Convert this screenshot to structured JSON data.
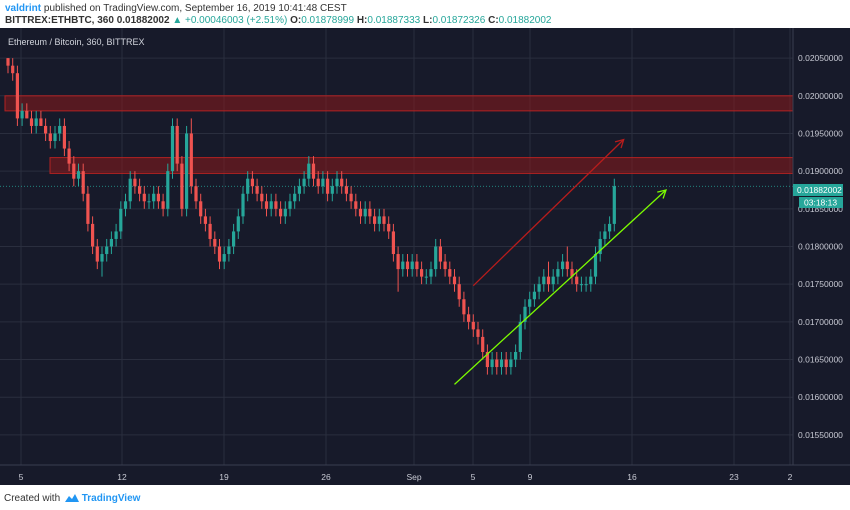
{
  "header": {
    "author": "valdrint",
    "published_text": "published on TradingView.com, September 16, 2019 10:41:48 CEST",
    "symbol_line": "BITTREX:ETHBTC, 360",
    "last_price": "0.01882002",
    "change_arrow": "▲",
    "change": "+0.00046003 (+2.51%)",
    "ohlc": [
      {
        "label": "O:",
        "value": "0.01878999"
      },
      {
        "label": "H:",
        "value": "0.01887333"
      },
      {
        "label": "L:",
        "value": "0.01872326"
      },
      {
        "label": "C:",
        "value": "0.01882002"
      }
    ]
  },
  "chart": {
    "legend": "Ethereum / Bitcoin, 360, BITTREX",
    "price_labels": [
      "0.02050000",
      "0.02000000",
      "0.01950000",
      "0.01900000",
      "0.01850000",
      "0.01800000",
      "0.01750000",
      "0.01700000",
      "0.01650000",
      "0.01600000",
      "0.01550000"
    ],
    "current_price_label": "0.01882002",
    "countdown_label": "03:18:13",
    "date_labels": [
      "5",
      "12",
      "19",
      "26",
      "Sep",
      "5",
      "9",
      "16",
      "23",
      "2"
    ]
  },
  "footer": {
    "created_with": "Created with",
    "brand": "TradingView"
  },
  "colors": {
    "background": "#171a2a",
    "up": "#26a69a",
    "down": "#ef5350",
    "zone": "#8b1a1a",
    "red_arrow": "#b71c1c",
    "green_arrow": "#7cfc00",
    "price_tag": "#26a69a"
  },
  "chart_data": {
    "type": "candlestick",
    "symbol": "ETHBTC",
    "exchange": "BITTREX",
    "interval": "360",
    "ylim": [
      0.0151,
      0.0209
    ],
    "resistance_zones": [
      [
        0.0198,
        0.02
      ],
      [
        0.01897,
        0.01918
      ]
    ],
    "candles": [
      [
        0.0205,
        0.0205,
        0.0203,
        0.0204
      ],
      [
        0.0204,
        0.0205,
        0.0202,
        0.0203
      ],
      [
        0.0203,
        0.0204,
        0.0196,
        0.0197
      ],
      [
        0.0197,
        0.0199,
        0.0196,
        0.0198
      ],
      [
        0.0198,
        0.0199,
        0.0197,
        0.0197
      ],
      [
        0.0197,
        0.0198,
        0.0195,
        0.0196
      ],
      [
        0.0196,
        0.0198,
        0.0195,
        0.0197
      ],
      [
        0.0197,
        0.0198,
        0.0196,
        0.0196
      ],
      [
        0.0196,
        0.0197,
        0.0194,
        0.0195
      ],
      [
        0.0195,
        0.0196,
        0.0193,
        0.0194
      ],
      [
        0.0194,
        0.0196,
        0.0193,
        0.0195
      ],
      [
        0.0195,
        0.0197,
        0.0194,
        0.0196
      ],
      [
        0.0196,
        0.0197,
        0.0192,
        0.0193
      ],
      [
        0.0193,
        0.0194,
        0.019,
        0.0191
      ],
      [
        0.0191,
        0.0192,
        0.0188,
        0.0189
      ],
      [
        0.0189,
        0.0191,
        0.0188,
        0.019
      ],
      [
        0.019,
        0.0191,
        0.0186,
        0.0187
      ],
      [
        0.0187,
        0.0188,
        0.0182,
        0.0183
      ],
      [
        0.0183,
        0.0184,
        0.0179,
        0.018
      ],
      [
        0.018,
        0.0181,
        0.0177,
        0.0178
      ],
      [
        0.0178,
        0.018,
        0.0176,
        0.0179
      ],
      [
        0.0179,
        0.0181,
        0.0178,
        0.018
      ],
      [
        0.018,
        0.0182,
        0.0179,
        0.0181
      ],
      [
        0.0181,
        0.0183,
        0.018,
        0.0182
      ],
      [
        0.0182,
        0.0186,
        0.0181,
        0.0185
      ],
      [
        0.0185,
        0.0187,
        0.0184,
        0.0186
      ],
      [
        0.0186,
        0.019,
        0.0185,
        0.0189
      ],
      [
        0.0189,
        0.019,
        0.0187,
        0.0188
      ],
      [
        0.0188,
        0.0189,
        0.0186,
        0.0187
      ],
      [
        0.0187,
        0.0188,
        0.0185,
        0.0186
      ],
      [
        0.0186,
        0.0187,
        0.0185,
        0.0186
      ],
      [
        0.0186,
        0.0188,
        0.0185,
        0.0187
      ],
      [
        0.0187,
        0.0188,
        0.0185,
        0.0186
      ],
      [
        0.0186,
        0.0187,
        0.0184,
        0.0185
      ],
      [
        0.0185,
        0.0191,
        0.0184,
        0.019
      ],
      [
        0.019,
        0.0197,
        0.0189,
        0.0196
      ],
      [
        0.0196,
        0.0197,
        0.019,
        0.0191
      ],
      [
        0.0191,
        0.0192,
        0.0184,
        0.0185
      ],
      [
        0.0185,
        0.0196,
        0.0184,
        0.0195
      ],
      [
        0.0195,
        0.0197,
        0.0187,
        0.0188
      ],
      [
        0.0188,
        0.0189,
        0.0185,
        0.0186
      ],
      [
        0.0186,
        0.0187,
        0.0183,
        0.0184
      ],
      [
        0.0184,
        0.0185,
        0.0182,
        0.0183
      ],
      [
        0.0183,
        0.0184,
        0.018,
        0.0181
      ],
      [
        0.0181,
        0.0182,
        0.0179,
        0.018
      ],
      [
        0.018,
        0.0181,
        0.0177,
        0.0178
      ],
      [
        0.0178,
        0.018,
        0.0177,
        0.0179
      ],
      [
        0.0179,
        0.0181,
        0.0178,
        0.018
      ],
      [
        0.018,
        0.0183,
        0.0179,
        0.0182
      ],
      [
        0.0182,
        0.0185,
        0.0181,
        0.0184
      ],
      [
        0.0184,
        0.0188,
        0.0183,
        0.0187
      ],
      [
        0.0187,
        0.019,
        0.0186,
        0.0189
      ],
      [
        0.0189,
        0.019,
        0.0187,
        0.0188
      ],
      [
        0.0188,
        0.0189,
        0.0186,
        0.0187
      ],
      [
        0.0187,
        0.0188,
        0.0185,
        0.0186
      ],
      [
        0.0186,
        0.0187,
        0.0184,
        0.0185
      ],
      [
        0.0185,
        0.0187,
        0.0184,
        0.0186
      ],
      [
        0.0186,
        0.0187,
        0.0184,
        0.0185
      ],
      [
        0.0185,
        0.0186,
        0.0183,
        0.0184
      ],
      [
        0.0184,
        0.0186,
        0.0183,
        0.0185
      ],
      [
        0.0185,
        0.0187,
        0.0184,
        0.0186
      ],
      [
        0.0186,
        0.0188,
        0.0185,
        0.0187
      ],
      [
        0.0187,
        0.0189,
        0.0186,
        0.0188
      ],
      [
        0.0188,
        0.019,
        0.0187,
        0.0189
      ],
      [
        0.0189,
        0.0192,
        0.0188,
        0.0191
      ],
      [
        0.0191,
        0.0192,
        0.0188,
        0.0189
      ],
      [
        0.0189,
        0.019,
        0.0187,
        0.0188
      ],
      [
        0.0188,
        0.019,
        0.0187,
        0.0189
      ],
      [
        0.0189,
        0.019,
        0.0186,
        0.0187
      ],
      [
        0.0187,
        0.0189,
        0.0186,
        0.0188
      ],
      [
        0.0188,
        0.019,
        0.0187,
        0.0189
      ],
      [
        0.0189,
        0.019,
        0.0187,
        0.0188
      ],
      [
        0.0188,
        0.0189,
        0.0186,
        0.0187
      ],
      [
        0.0187,
        0.0188,
        0.0185,
        0.0186
      ],
      [
        0.0186,
        0.0187,
        0.0184,
        0.0185
      ],
      [
        0.0185,
        0.0186,
        0.0183,
        0.0184
      ],
      [
        0.0184,
        0.0186,
        0.0183,
        0.0185
      ],
      [
        0.0185,
        0.0186,
        0.0183,
        0.0184
      ],
      [
        0.0184,
        0.0185,
        0.0182,
        0.0183
      ],
      [
        0.0183,
        0.0185,
        0.0182,
        0.0184
      ],
      [
        0.0184,
        0.0185,
        0.0182,
        0.0183
      ],
      [
        0.0183,
        0.0184,
        0.0181,
        0.0182
      ],
      [
        0.0182,
        0.0183,
        0.0178,
        0.0179
      ],
      [
        0.0179,
        0.018,
        0.0174,
        0.0177
      ],
      [
        0.0177,
        0.0179,
        0.0176,
        0.0178
      ],
      [
        0.0178,
        0.0179,
        0.0176,
        0.0177
      ],
      [
        0.0177,
        0.0179,
        0.0176,
        0.0178
      ],
      [
        0.0178,
        0.0179,
        0.0176,
        0.0177
      ],
      [
        0.0177,
        0.0178,
        0.0175,
        0.0176
      ],
      [
        0.0176,
        0.0177,
        0.0175,
        0.0176
      ],
      [
        0.0176,
        0.0178,
        0.0175,
        0.0177
      ],
      [
        0.0177,
        0.0181,
        0.0176,
        0.018
      ],
      [
        0.018,
        0.0181,
        0.0177,
        0.0178
      ],
      [
        0.0178,
        0.0179,
        0.0176,
        0.0177
      ],
      [
        0.0177,
        0.0178,
        0.0175,
        0.0176
      ],
      [
        0.0176,
        0.0177,
        0.0174,
        0.0175
      ],
      [
        0.0175,
        0.0176,
        0.0172,
        0.0173
      ],
      [
        0.0173,
        0.0174,
        0.017,
        0.0171
      ],
      [
        0.0171,
        0.0172,
        0.0169,
        0.017
      ],
      [
        0.017,
        0.0171,
        0.0168,
        0.0169
      ],
      [
        0.0169,
        0.017,
        0.0167,
        0.0168
      ],
      [
        0.0168,
        0.0169,
        0.0165,
        0.0166
      ],
      [
        0.0166,
        0.0167,
        0.0163,
        0.0164
      ],
      [
        0.0164,
        0.0166,
        0.0163,
        0.0165
      ],
      [
        0.0165,
        0.0166,
        0.0163,
        0.0164
      ],
      [
        0.0164,
        0.0166,
        0.0163,
        0.0165
      ],
      [
        0.0165,
        0.0166,
        0.0163,
        0.0164
      ],
      [
        0.0164,
        0.0166,
        0.0163,
        0.0165
      ],
      [
        0.0165,
        0.0167,
        0.0164,
        0.0166
      ],
      [
        0.0166,
        0.0171,
        0.0165,
        0.017
      ],
      [
        0.017,
        0.0173,
        0.0169,
        0.0172
      ],
      [
        0.0172,
        0.0174,
        0.0171,
        0.0173
      ],
      [
        0.0173,
        0.0175,
        0.0172,
        0.0174
      ],
      [
        0.0174,
        0.0176,
        0.0173,
        0.0175
      ],
      [
        0.0175,
        0.0177,
        0.0174,
        0.0176
      ],
      [
        0.0176,
        0.0178,
        0.0174,
        0.0175
      ],
      [
        0.0175,
        0.0177,
        0.0174,
        0.0176
      ],
      [
        0.0176,
        0.0178,
        0.0175,
        0.0177
      ],
      [
        0.0177,
        0.0179,
        0.0176,
        0.0178
      ],
      [
        0.0178,
        0.018,
        0.0176,
        0.0177
      ],
      [
        0.0177,
        0.0178,
        0.0175,
        0.0176
      ],
      [
        0.0176,
        0.0177,
        0.0174,
        0.0175
      ],
      [
        0.0175,
        0.0176,
        0.0174,
        0.0175
      ],
      [
        0.0175,
        0.0176,
        0.0174,
        0.0175
      ],
      [
        0.0175,
        0.0177,
        0.0174,
        0.0176
      ],
      [
        0.0176,
        0.018,
        0.0175,
        0.0179
      ],
      [
        0.0179,
        0.0182,
        0.0178,
        0.0181
      ],
      [
        0.0181,
        0.0183,
        0.018,
        0.0182
      ],
      [
        0.0182,
        0.0184,
        0.0181,
        0.0183
      ],
      [
        0.0183,
        0.0189,
        0.0182,
        0.0188
      ]
    ],
    "trendlines": [
      {
        "color": "red",
        "from": [
          99,
          0.01748
        ],
        "to": [
          131,
          0.01942
        ]
      },
      {
        "color": "green",
        "from": [
          95,
          0.01617
        ],
        "to": [
          140,
          0.01875
        ]
      }
    ]
  }
}
